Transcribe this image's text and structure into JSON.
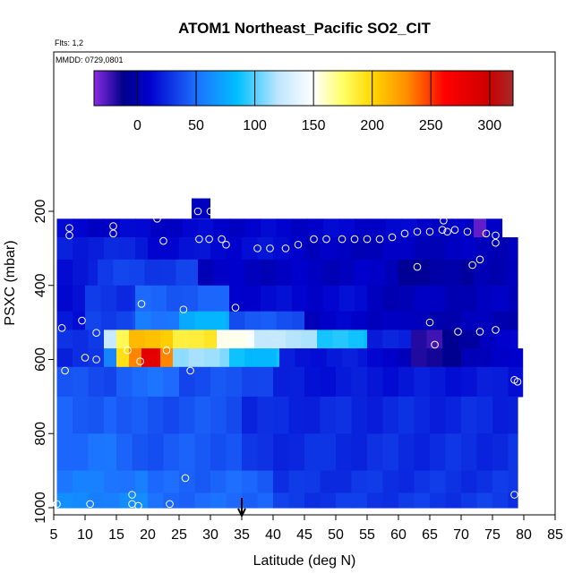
{
  "chart_data": {
    "type": "heatmap",
    "title": "ATOM1 Northeast_Pacific SO2_CIT",
    "flights_note": "Flts: 1,2",
    "mmdd_note": "MMDD: 0729,0801",
    "xlabel": "Latitude (deg N)",
    "ylabel": "PSXC (mbar)",
    "xlim": [
      5,
      85
    ],
    "ylim": [
      1000,
      100
    ],
    "x_ticks": [
      5,
      10,
      15,
      20,
      25,
      30,
      35,
      40,
      45,
      50,
      55,
      60,
      65,
      70,
      75,
      80,
      85
    ],
    "y_ticks": [
      1000,
      800,
      600,
      400,
      200
    ],
    "colorbar": {
      "range": [
        -37,
        320
      ],
      "ticks": [
        0,
        50,
        100,
        150,
        200,
        250,
        300
      ],
      "stops": [
        {
          "v": -37,
          "color": "#8a2be2"
        },
        {
          "v": -12,
          "color": "#00008b"
        },
        {
          "v": 10,
          "color": "#0000cd"
        },
        {
          "v": 50,
          "color": "#1e6fff"
        },
        {
          "v": 85,
          "color": "#00bfff"
        },
        {
          "v": 120,
          "color": "#bfe6ff"
        },
        {
          "v": 150,
          "color": "#ffffff"
        },
        {
          "v": 175,
          "color": "#ffff66"
        },
        {
          "v": 200,
          "color": "#ffd700"
        },
        {
          "v": 230,
          "color": "#ff8c00"
        },
        {
          "v": 262,
          "color": "#ff0000"
        },
        {
          "v": 300,
          "color": "#cc0000"
        },
        {
          "v": 320,
          "color": "#a52a2a"
        }
      ]
    },
    "marker_latitude": 35,
    "columns": [
      {
        "lat0": 5.5,
        "lat1": 10,
        "ptop": 220,
        "pbot": 1000
      },
      {
        "lat0": 10,
        "lat1": 27,
        "ptop": 220,
        "pbot": 1000
      },
      {
        "lat0": 27,
        "lat1": 30,
        "ptop": 165,
        "pbot": 1000
      },
      {
        "lat0": 30,
        "lat1": 77,
        "ptop": 220,
        "pbot": 1000
      },
      {
        "lat0": 77,
        "lat1": 79,
        "ptop": 270,
        "pbot": 1000
      },
      {
        "lat0": 79,
        "lat1": 79.8,
        "ptop": 520,
        "pbot": 660
      }
    ],
    "field_layers": [
      {
        "p0": 220,
        "p1": 270,
        "segments": [
          [
            5.5,
            66,
            10
          ],
          [
            66,
            72,
            5
          ],
          [
            72,
            74,
            -30
          ],
          [
            74,
            79,
            8
          ]
        ]
      },
      {
        "p0": 270,
        "p1": 330,
        "segments": [
          [
            5.5,
            20,
            22
          ],
          [
            20,
            45,
            14
          ],
          [
            45,
            79,
            5
          ]
        ]
      },
      {
        "p0": 330,
        "p1": 400,
        "segments": [
          [
            5.5,
            12,
            18
          ],
          [
            12,
            28,
            32
          ],
          [
            28,
            60,
            6
          ],
          [
            60,
            72,
            -5
          ],
          [
            72,
            79,
            3
          ]
        ]
      },
      {
        "p0": 400,
        "p1": 470,
        "segments": [
          [
            5.5,
            10,
            12
          ],
          [
            10,
            18,
            28
          ],
          [
            18,
            33,
            44
          ],
          [
            33,
            55,
            12
          ],
          [
            55,
            79,
            4
          ]
        ]
      },
      {
        "p0": 470,
        "p1": 520,
        "segments": [
          [
            5.5,
            10,
            15
          ],
          [
            10,
            18,
            35
          ],
          [
            18,
            25,
            55
          ],
          [
            25,
            33,
            78
          ],
          [
            33,
            45,
            40
          ],
          [
            45,
            60,
            8
          ],
          [
            60,
            79,
            2
          ]
        ]
      },
      {
        "p0": 520,
        "p1": 570,
        "segments": [
          [
            5.5,
            13,
            30
          ],
          [
            13,
            15,
            120
          ],
          [
            15,
            17,
            175
          ],
          [
            17,
            24,
            208
          ],
          [
            24,
            31,
            188
          ],
          [
            31,
            37,
            150
          ],
          [
            37,
            47,
            120
          ],
          [
            47,
            55,
            88
          ],
          [
            55,
            62,
            20
          ],
          [
            62,
            67,
            -20
          ],
          [
            67,
            73,
            -8
          ],
          [
            73,
            79,
            8
          ]
        ]
      },
      {
        "p0": 570,
        "p1": 620,
        "segments": [
          [
            5.5,
            13,
            25
          ],
          [
            13,
            15,
            60
          ],
          [
            15,
            17,
            195
          ],
          [
            17,
            19,
            232
          ],
          [
            19,
            22,
            282
          ],
          [
            22,
            24,
            232
          ],
          [
            24,
            33,
            112
          ],
          [
            33,
            41,
            85
          ],
          [
            41,
            55,
            18
          ],
          [
            55,
            62,
            8
          ],
          [
            62,
            70,
            -14
          ],
          [
            70,
            79.8,
            6
          ]
        ]
      },
      {
        "p0": 620,
        "p1": 700,
        "segments": [
          [
            5.5,
            15,
            38
          ],
          [
            15,
            25,
            48
          ],
          [
            25,
            40,
            38
          ],
          [
            40,
            79.8,
            18
          ]
        ]
      },
      {
        "p0": 700,
        "p1": 800,
        "segments": [
          [
            5.5,
            15,
            44
          ],
          [
            15,
            35,
            40
          ],
          [
            35,
            79,
            24
          ]
        ]
      },
      {
        "p0": 800,
        "p1": 900,
        "segments": [
          [
            5.5,
            15,
            50
          ],
          [
            15,
            35,
            42
          ],
          [
            35,
            79,
            26
          ]
        ]
      },
      {
        "p0": 900,
        "p1": 960,
        "segments": [
          [
            5.5,
            20,
            55
          ],
          [
            20,
            40,
            46
          ],
          [
            40,
            79,
            28
          ]
        ]
      },
      {
        "p0": 960,
        "p1": 1000,
        "segments": [
          [
            5.5,
            20,
            60
          ],
          [
            20,
            40,
            48
          ],
          [
            40,
            79,
            30
          ]
        ]
      }
    ],
    "samples": [
      [
        5.5,
        990
      ],
      [
        10.8,
        990
      ],
      [
        17.5,
        965
      ],
      [
        17.5,
        990
      ],
      [
        18.5,
        995
      ],
      [
        23.5,
        990
      ],
      [
        6.3,
        515
      ],
      [
        6.8,
        630
      ],
      [
        9.5,
        495
      ],
      [
        10,
        595
      ],
      [
        11.8,
        600
      ],
      [
        11.8,
        528
      ],
      [
        16.8,
        575
      ],
      [
        18.8,
        605
      ],
      [
        19,
        450
      ],
      [
        23,
        575
      ],
      [
        25.7,
        465
      ],
      [
        26.8,
        630
      ],
      [
        26,
        920
      ],
      [
        7.5,
        245
      ],
      [
        7.5,
        265
      ],
      [
        14.5,
        240
      ],
      [
        14.5,
        260
      ],
      [
        21.5,
        220
      ],
      [
        22.5,
        280
      ],
      [
        28,
        200
      ],
      [
        30,
        200
      ],
      [
        28.2,
        275
      ],
      [
        29.8,
        275
      ],
      [
        31.8,
        275
      ],
      [
        32.5,
        290
      ],
      [
        34,
        460
      ],
      [
        37.5,
        300
      ],
      [
        39.5,
        300
      ],
      [
        42,
        300
      ],
      [
        44,
        290
      ],
      [
        46.5,
        275
      ],
      [
        48.5,
        275
      ],
      [
        51,
        275
      ],
      [
        53,
        275
      ],
      [
        55,
        275
      ],
      [
        57,
        275
      ],
      [
        59,
        270
      ],
      [
        61,
        260
      ],
      [
        63,
        255
      ],
      [
        65,
        255
      ],
      [
        67,
        250
      ],
      [
        67.2,
        225
      ],
      [
        67.8,
        255
      ],
      [
        69,
        250
      ],
      [
        71,
        255
      ],
      [
        63,
        350
      ],
      [
        65,
        500
      ],
      [
        65.8,
        560
      ],
      [
        69.5,
        525
      ],
      [
        71.8,
        345
      ],
      [
        73,
        330
      ],
      [
        74,
        260
      ],
      [
        75.5,
        265
      ],
      [
        75.5,
        285
      ],
      [
        73,
        525
      ],
      [
        75.5,
        520
      ],
      [
        78.5,
        655
      ],
      [
        79,
        660
      ],
      [
        78.5,
        965
      ]
    ]
  }
}
